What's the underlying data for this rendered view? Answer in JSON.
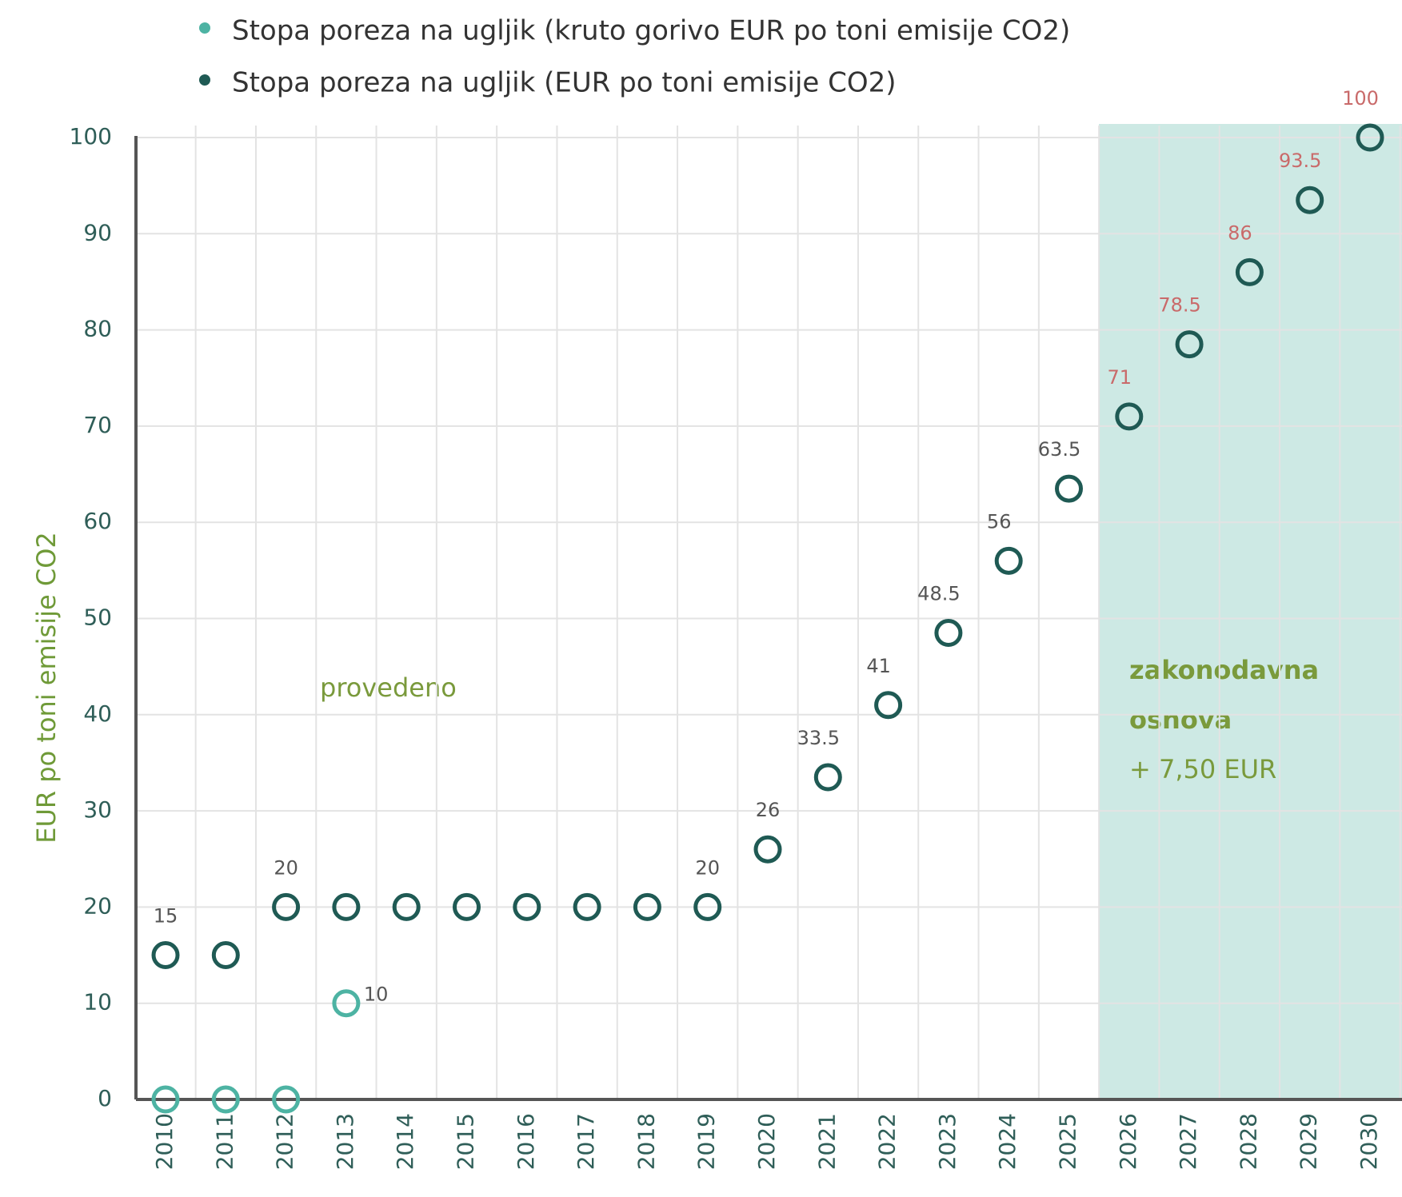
{
  "chart_data": {
    "type": "scatter",
    "ylabel": "EUR po toni emisije CO2",
    "categories": [
      "2010",
      "2011",
      "2012",
      "2013",
      "2014",
      "2015",
      "2016",
      "2017",
      "2018",
      "2019",
      "2020",
      "2021",
      "2022",
      "2023",
      "2024",
      "2025",
      "2026",
      "2027",
      "2028",
      "2029",
      "2030"
    ],
    "series": [
      {
        "name": "Stopa poreza na ugljik (kruto gorivo EUR po toni emisije CO2)",
        "color": "#4db3a3",
        "values": [
          0,
          0,
          0,
          10,
          null,
          null,
          null,
          null,
          null,
          null,
          null,
          null,
          null,
          null,
          null,
          null,
          null,
          null,
          null,
          null,
          null
        ],
        "value_labels": [
          null,
          null,
          null,
          "10",
          null,
          null,
          null,
          null,
          null,
          null,
          null,
          null,
          null,
          null,
          null,
          null,
          null,
          null,
          null,
          null,
          null
        ]
      },
      {
        "name": "Stopa poreza na ugljik (EUR po toni emisije CO2)",
        "color": "#1f5a54",
        "values": [
          15,
          15,
          20,
          20,
          20,
          20,
          20,
          20,
          20,
          20,
          26,
          33.5,
          41,
          48.5,
          56,
          63.5,
          71,
          78.5,
          86,
          93.5,
          100
        ],
        "value_labels": [
          "15",
          null,
          "20",
          null,
          null,
          null,
          null,
          null,
          null,
          "20",
          "26",
          "33.5",
          "41",
          "48.5",
          "56",
          "63.5",
          "71",
          "78.5",
          "86",
          "93.5",
          "100"
        ]
      }
    ],
    "ylim": [
      0,
      100
    ],
    "yticks": [
      0,
      10,
      20,
      30,
      40,
      50,
      60,
      70,
      80,
      90,
      100
    ],
    "grid": true,
    "annotations": [
      "provedeno",
      "zakonodavna",
      "osnova",
      "+ 7,50 EUR"
    ]
  }
}
